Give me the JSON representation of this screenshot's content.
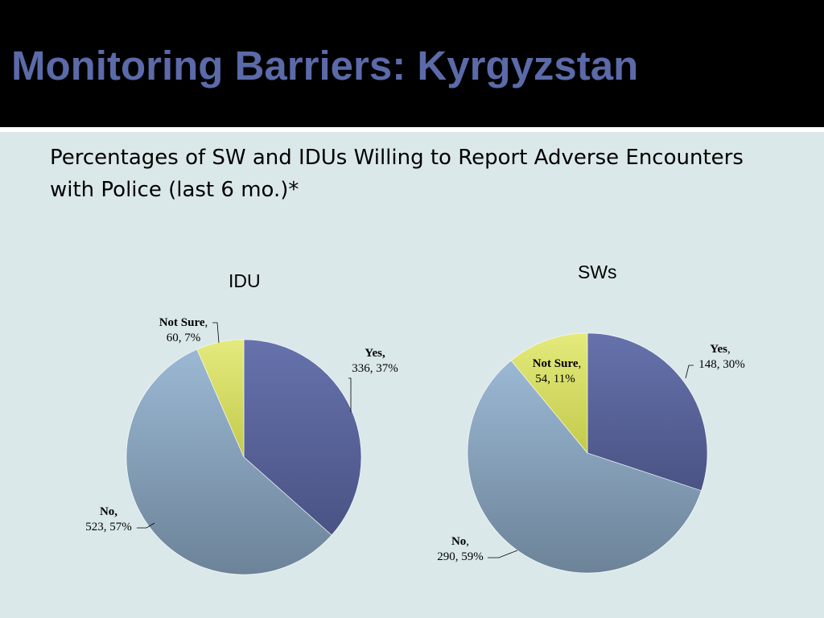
{
  "slide": {
    "title": "Monitoring Barriers: Kyrgyzstan",
    "subtitle_line1": "Percentages of SW and IDUs Willing to Report Adverse Encounters",
    "subtitle_line2": "with Police  (last 6 mo.)*"
  },
  "colors": {
    "title": "#5b6aa8",
    "background": "#dbe8ea",
    "yes": "#5a6598",
    "no": "#8aa3bd",
    "not_sure": "#d9e06a"
  },
  "chart_data": [
    {
      "type": "pie",
      "title": "IDU",
      "categories": [
        "Yes",
        "No",
        "Not Sure"
      ],
      "values": [
        336,
        523,
        60
      ],
      "percents": [
        37,
        57,
        7
      ],
      "labels": [
        {
          "name": "Yes,",
          "detail": "336, 37%"
        },
        {
          "name": "No,",
          "detail": "523, 57%"
        },
        {
          "name": "Not Sure",
          "name_suffix": ",",
          "detail": "60, 7%"
        }
      ]
    },
    {
      "type": "pie",
      "title": "SWs",
      "categories": [
        "Yes",
        "No",
        "Not Sure"
      ],
      "values": [
        148,
        290,
        54
      ],
      "percents": [
        30,
        59,
        11
      ],
      "labels": [
        {
          "name": "Yes",
          "name_suffix": ",",
          "detail": "148, 30%"
        },
        {
          "name": "No",
          "name_suffix": ",",
          "detail": "290, 59%"
        },
        {
          "name": "Not Sure",
          "name_suffix": ",",
          "detail": "54, 11%"
        }
      ]
    }
  ]
}
